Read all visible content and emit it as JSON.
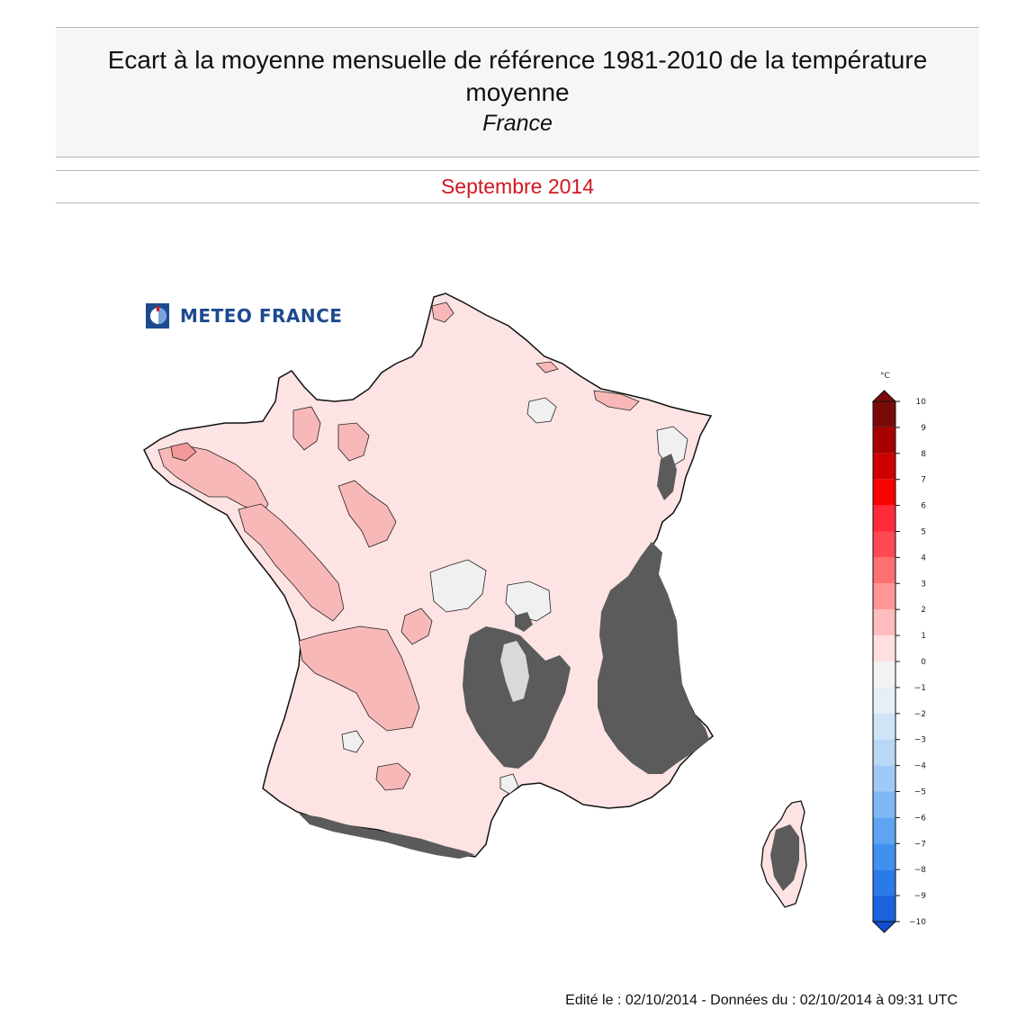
{
  "header": {
    "title": "Ecart à la moyenne mensuelle de référence 1981-2010 de la température moyenne",
    "subtitle": "France",
    "period": "Septembre 2014"
  },
  "logo": {
    "text": "METEO FRANCE"
  },
  "footer": {
    "text": "Edité le : 02/10/2014 - Données du : 02/10/2014 à 09:31 UTC"
  },
  "legend": {
    "unit": "°C",
    "tick_labels": [
      "10",
      "9",
      "8",
      "7",
      "6",
      "5",
      "4",
      "3",
      "2",
      "1",
      "0",
      "−1",
      "−2",
      "−3",
      "−4",
      "−5",
      "−6",
      "−7",
      "−8",
      "−9",
      "−10"
    ],
    "colors": [
      "#7a0a0a",
      "#a80000",
      "#cc0000",
      "#ff0000",
      "#ff2a3a",
      "#ff4a55",
      "#ff7070",
      "#ff9595",
      "#ffbcbc",
      "#ffe0e0",
      "#f2f2f2",
      "#e6eef8",
      "#d0e4f7",
      "#b8d8f6",
      "#9fcaf7",
      "#80b8f5",
      "#5fa3f3",
      "#4090ef",
      "#2a7ae8",
      "#1a63dd",
      "#1050d0"
    ]
  },
  "map": {
    "colors": {
      "base": "#fde3e3",
      "warm": "#f9b8b8",
      "warmer": "#f29898",
      "neutral": "#f0f0f0",
      "relief": "#5b5b5b",
      "outline": "#111111"
    }
  }
}
